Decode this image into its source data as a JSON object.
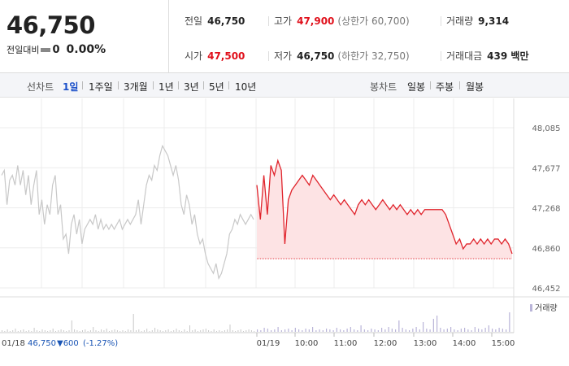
{
  "header": {
    "price": "46,750",
    "change_label": "전일대비",
    "change_value": "0",
    "change_pct": "0.00%",
    "stats": {
      "prev_close": {
        "label": "전일",
        "value": "46,750"
      },
      "high": {
        "label": "고가",
        "value": "47,900",
        "sub": "(상한가 60,700)"
      },
      "volume": {
        "label": "거래량",
        "value": "9,314"
      },
      "open": {
        "label": "시가",
        "value": "47,500"
      },
      "low": {
        "label": "저가",
        "value": "46,750",
        "sub": "(하한가 32,750)"
      },
      "amount": {
        "label": "거래대금",
        "value": "439 백만"
      }
    }
  },
  "toolbar": {
    "line_label": "선차트",
    "line_periods": [
      "1일",
      "1주일",
      "3개월",
      "1년",
      "3년",
      "5년",
      "10년"
    ],
    "active_period": "1일",
    "candle_label": "봉차트",
    "candle_periods": [
      "일봉",
      "주봉",
      "월봉"
    ]
  },
  "chart_data": {
    "type": "line",
    "y_ticks": [
      "48,085",
      "47,677",
      "47,268",
      "46,860",
      "46,452"
    ],
    "ylim": [
      46452,
      48085
    ],
    "x_ticks": [
      "01/19",
      "10:00",
      "11:00",
      "12:00",
      "13:00",
      "14:00",
      "15:00"
    ],
    "volume_legend": "거래량",
    "prev_day": {
      "date": "01/18",
      "price": "46,750",
      "change": "▼600",
      "pct": "(-1.27%)"
    },
    "reference_price": 46750,
    "colors": {
      "today_line": "#e0242c",
      "today_fill": "#fde3e4",
      "prev_line": "#c8c8c8",
      "volume_bar": "#b9b4d8"
    },
    "prev_series": [
      47600,
      47650,
      47300,
      47550,
      47600,
      47500,
      47700,
      47500,
      47650,
      47400,
      47600,
      47300,
      47500,
      47650,
      47200,
      47350,
      47100,
      47300,
      47200,
      47500,
      47600,
      47200,
      47300,
      46950,
      47000,
      46800,
      47100,
      47200,
      47000,
      47150,
      46900,
      47050,
      47100,
      47150,
      47100,
      47200,
      47050,
      47150,
      47050,
      47100,
      47050,
      47100,
      47050,
      47100,
      47150,
      47050,
      47100,
      47150,
      47100,
      47150,
      47200,
      47350,
      47100,
      47300,
      47500,
      47600,
      47550,
      47700,
      47650,
      47800,
      47900,
      47850,
      47800,
      47700,
      47600,
      47700,
      47550,
      47300,
      47200,
      47400,
      47300,
      47100,
      47200,
      47000,
      46900,
      46950,
      46800,
      46700,
      46650,
      46600,
      46700,
      46550,
      46600,
      46700,
      46800,
      47000,
      47050,
      47150,
      47100,
      47200,
      47150,
      47100,
      47150,
      47200,
      47150
    ],
    "today_series": [
      47500,
      47150,
      47600,
      47200,
      47700,
      47600,
      47750,
      47650,
      46900,
      47350,
      47450,
      47500,
      47550,
      47600,
      47550,
      47500,
      47600,
      47550,
      47500,
      47450,
      47400,
      47350,
      47400,
      47350,
      47300,
      47350,
      47300,
      47250,
      47200,
      47300,
      47350,
      47300,
      47350,
      47300,
      47250,
      47300,
      47350,
      47300,
      47250,
      47300,
      47250,
      47300,
      47250,
      47200,
      47250,
      47200,
      47250,
      47200,
      47250,
      47250,
      47250,
      47250,
      47250,
      47250,
      47200,
      47100,
      47000,
      46900,
      46950,
      46850,
      46900,
      46900,
      46950,
      46900,
      46950,
      46900,
      46950,
      46900,
      46950,
      46950,
      46900,
      46950,
      46900,
      46800
    ]
  }
}
